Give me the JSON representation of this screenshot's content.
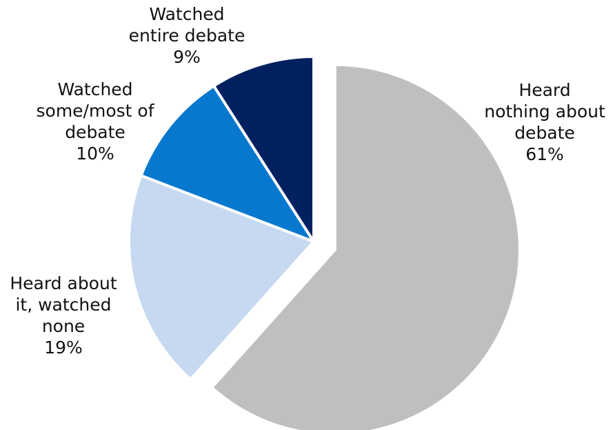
{
  "chart_data": {
    "type": "pie",
    "title": "",
    "start_angle_deg": 0,
    "direction": "clockwise",
    "exploded_slice": "Heard nothing about debate",
    "slices": [
      {
        "name": "Heard nothing about debate",
        "value": 61,
        "percent_label": "61%",
        "label_lines": [
          "Heard",
          "nothing about",
          "debate",
          "61%"
        ],
        "color": "#BFBFBF"
      },
      {
        "name": "Heard about it, watched none",
        "value": 19,
        "percent_label": "19%",
        "label_lines": [
          "Heard about",
          "it, watched",
          "none",
          "19%"
        ],
        "color": "#C6D9F1"
      },
      {
        "name": "Watched some/most of debate",
        "value": 10,
        "percent_label": "10%",
        "label_lines": [
          "Watched",
          "some/most of",
          "debate",
          "10%"
        ],
        "color": "#0878CF"
      },
      {
        "name": "Watched entire debate",
        "value": 9,
        "percent_label": "9%",
        "label_lines": [
          "Watched",
          "entire debate",
          "9%"
        ],
        "color": "#002060"
      }
    ]
  }
}
